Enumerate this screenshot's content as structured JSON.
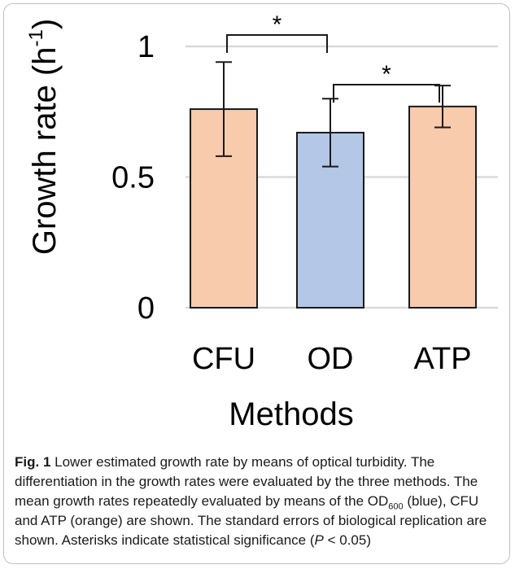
{
  "chart_data": {
    "type": "bar",
    "categories": [
      "CFU",
      "OD",
      "ATP"
    ],
    "values": [
      0.76,
      0.67,
      0.77
    ],
    "errors": [
      0.18,
      0.13,
      0.08
    ],
    "bar_colors": [
      "#f8cbad",
      "#b4c7e7",
      "#f8cbad"
    ],
    "bar_edge_color": "#1a1a1a",
    "grid_color": "#d9d9d9",
    "ylim": [
      0,
      1
    ],
    "yticks": [
      "0",
      "0.5",
      "1"
    ],
    "ylabel": "Growth rate (h-1)",
    "ylabel_base": "Growth rate (h",
    "ylabel_sup": "-1",
    "ylabel_close": ")",
    "xlabel": "Methods",
    "grid": true,
    "significance": [
      {
        "from": "CFU",
        "to": "OD",
        "label": "*"
      },
      {
        "from": "OD",
        "to": "ATP",
        "label": "*"
      }
    ]
  },
  "caption": {
    "label": "Fig. 1",
    "title": "Lower estimated growth rate by means of optical turbidity.",
    "s1": "The differentiation in the growth rates were evaluated by the three methods. The mean growth rates repeatedly evaluated by means of the OD",
    "s1_sub": "600",
    "s1_end": "(blue), CFU and ATP (orange) are shown. The standard errors of biological replication are shown. Asterisks indicate statistical significance (",
    "p_symbol": "P",
    "p_rest": "< 0.05)"
  }
}
